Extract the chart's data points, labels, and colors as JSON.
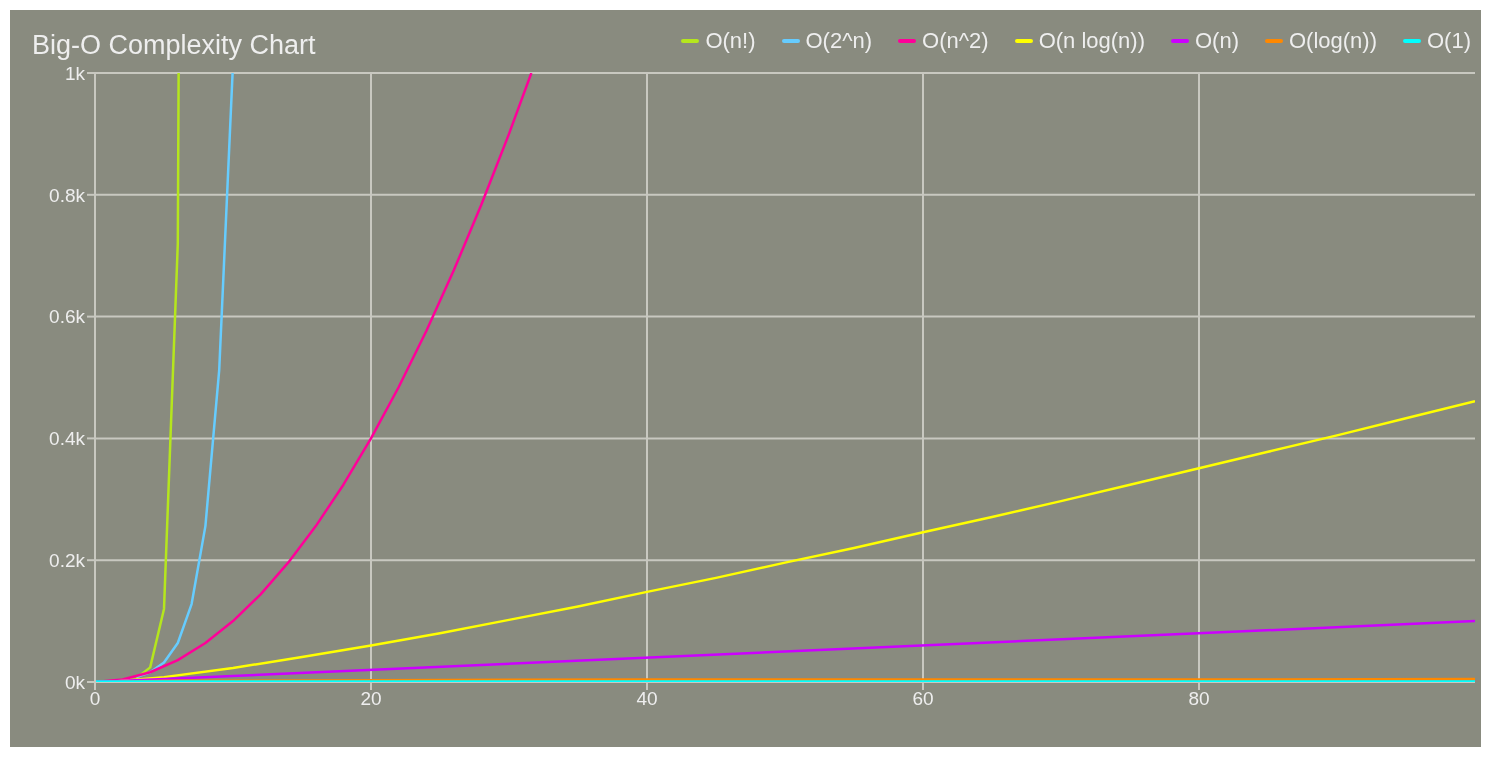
{
  "chart_data": {
    "type": "line",
    "title": "Big-O Complexity Chart",
    "legend": "top right",
    "grid": true,
    "xlim": [
      0,
      100
    ],
    "xticks": [
      0,
      20,
      40,
      60,
      80
    ],
    "ylim": [
      0,
      1000
    ],
    "yticks": [
      {
        "value": 0,
        "label": "0k"
      },
      {
        "value": 200,
        "label": "0.2k"
      },
      {
        "value": 400,
        "label": "0.4k"
      },
      {
        "value": 600,
        "label": "0.6k"
      },
      {
        "value": 800,
        "label": "0.8k"
      },
      {
        "value": 1000,
        "label": "1k"
      }
    ],
    "series": [
      {
        "name": "O(n!)",
        "color": "#b5e61d",
        "x": [
          3,
          4,
          5,
          6,
          6.06
        ],
        "values": [
          6,
          24,
          120,
          720,
          1000
        ]
      },
      {
        "name": "O(2^n)",
        "color": "#66ccff",
        "x": [
          3,
          4,
          5,
          6,
          7,
          8,
          9,
          9.97
        ],
        "values": [
          8,
          16,
          32,
          64,
          128,
          256,
          512,
          1000
        ]
      },
      {
        "name": "O(n^2)",
        "color": "#ff0099",
        "x": [
          0,
          2,
          4,
          6,
          8,
          10,
          12,
          14,
          16,
          18,
          20,
          22,
          24,
          26,
          28,
          30,
          31.62
        ],
        "values": [
          0,
          4,
          16,
          36,
          64,
          100,
          144,
          196,
          256,
          324,
          400,
          484,
          576,
          676,
          784,
          900,
          1000
        ]
      },
      {
        "name": "O(n log(n))",
        "color": "#ffff00",
        "x": [
          1,
          5,
          10,
          15,
          20,
          25,
          30,
          35,
          40,
          45,
          50,
          55,
          60,
          65,
          70,
          75,
          80,
          85,
          90,
          95,
          100
        ],
        "values": [
          0,
          8,
          23,
          41,
          60,
          80,
          102,
          124,
          148,
          171,
          196,
          220,
          246,
          271,
          297,
          324,
          351,
          378,
          405,
          433,
          461
        ]
      },
      {
        "name": "O(n)",
        "color": "#cc00ff",
        "x": [
          0,
          100
        ],
        "values": [
          0,
          100
        ]
      },
      {
        "name": "O(log(n))",
        "color": "#ff8800",
        "x": [
          1,
          5,
          10,
          20,
          40,
          60,
          80,
          100
        ],
        "values": [
          0,
          2,
          2,
          3,
          4,
          4,
          4,
          5
        ]
      },
      {
        "name": "O(1)",
        "color": "#00ffff",
        "x": [
          0,
          100
        ],
        "values": [
          1,
          1
        ]
      }
    ]
  }
}
